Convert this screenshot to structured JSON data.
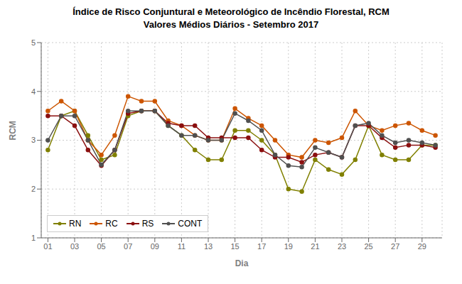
{
  "chart_data": {
    "type": "line",
    "title": "Índice de Risco Conjuntural e Meteorológico de Incêndio Florestal,  RCM",
    "subtitle": "Valores Médios Diários - Setembro 2017",
    "x_label": "Dia",
    "y_label": "RCM",
    "x": [
      1,
      2,
      3,
      4,
      5,
      6,
      7,
      8,
      9,
      10,
      11,
      12,
      13,
      14,
      15,
      16,
      17,
      18,
      19,
      20,
      21,
      22,
      23,
      24,
      25,
      26,
      27,
      28,
      29,
      30
    ],
    "xlim": [
      0.5,
      30.5
    ],
    "xticks": [
      {
        "value": 1,
        "label": "01"
      },
      {
        "value": 3,
        "label": "03"
      },
      {
        "value": 5,
        "label": "05"
      },
      {
        "value": 7,
        "label": "07"
      },
      {
        "value": 9,
        "label": "09"
      },
      {
        "value": 11,
        "label": "11"
      },
      {
        "value": 13,
        "label": "13"
      },
      {
        "value": 15,
        "label": "15"
      },
      {
        "value": 17,
        "label": "17"
      },
      {
        "value": 19,
        "label": "19"
      },
      {
        "value": 21,
        "label": "21"
      },
      {
        "value": 23,
        "label": "23"
      },
      {
        "value": 25,
        "label": "25"
      },
      {
        "value": 27,
        "label": "27"
      },
      {
        "value": 29,
        "label": "29"
      }
    ],
    "ylim": [
      1,
      5
    ],
    "yticks": [
      1,
      2,
      3,
      4,
      5
    ],
    "grid": true,
    "legend": "lower left",
    "marker": "circle",
    "series": [
      {
        "name": "RN",
        "color": "#808000",
        "values": [
          2.8,
          3.5,
          3.6,
          3.1,
          2.6,
          2.7,
          3.5,
          3.6,
          3.6,
          3.3,
          3.1,
          2.8,
          2.6,
          2.6,
          3.2,
          3.2,
          3.0,
          2.7,
          2.0,
          1.95,
          2.6,
          2.4,
          2.3,
          2.6,
          3.3,
          2.7,
          2.6,
          2.6,
          2.9,
          2.9
        ]
      },
      {
        "name": "RC",
        "color": "#CC5500",
        "values": [
          3.6,
          3.8,
          3.6,
          3.0,
          2.7,
          3.1,
          3.9,
          3.8,
          3.8,
          3.4,
          3.3,
          3.1,
          3.0,
          3.0,
          3.65,
          3.45,
          3.3,
          3.0,
          2.7,
          2.65,
          3.0,
          2.95,
          3.05,
          3.6,
          3.3,
          3.2,
          3.3,
          3.35,
          3.2,
          3.1
        ]
      },
      {
        "name": "RS",
        "color": "#8B1010",
        "values": [
          3.5,
          3.5,
          3.3,
          2.8,
          2.48,
          2.8,
          3.55,
          3.6,
          3.6,
          3.35,
          3.3,
          3.3,
          3.05,
          3.05,
          3.05,
          3.05,
          2.8,
          2.65,
          2.65,
          2.55,
          2.7,
          2.75,
          2.65,
          3.3,
          3.3,
          3.05,
          2.85,
          2.9,
          2.9,
          2.85
        ]
      },
      {
        "name": "CONT",
        "color": "#505050",
        "values": [
          3.0,
          3.5,
          3.5,
          3.0,
          2.5,
          2.8,
          3.6,
          3.6,
          3.6,
          3.3,
          3.1,
          3.1,
          3.0,
          3.0,
          3.55,
          3.4,
          3.2,
          2.7,
          2.48,
          2.45,
          2.85,
          2.75,
          2.65,
          3.3,
          3.35,
          3.1,
          2.95,
          3.0,
          2.95,
          2.9
        ]
      }
    ]
  }
}
